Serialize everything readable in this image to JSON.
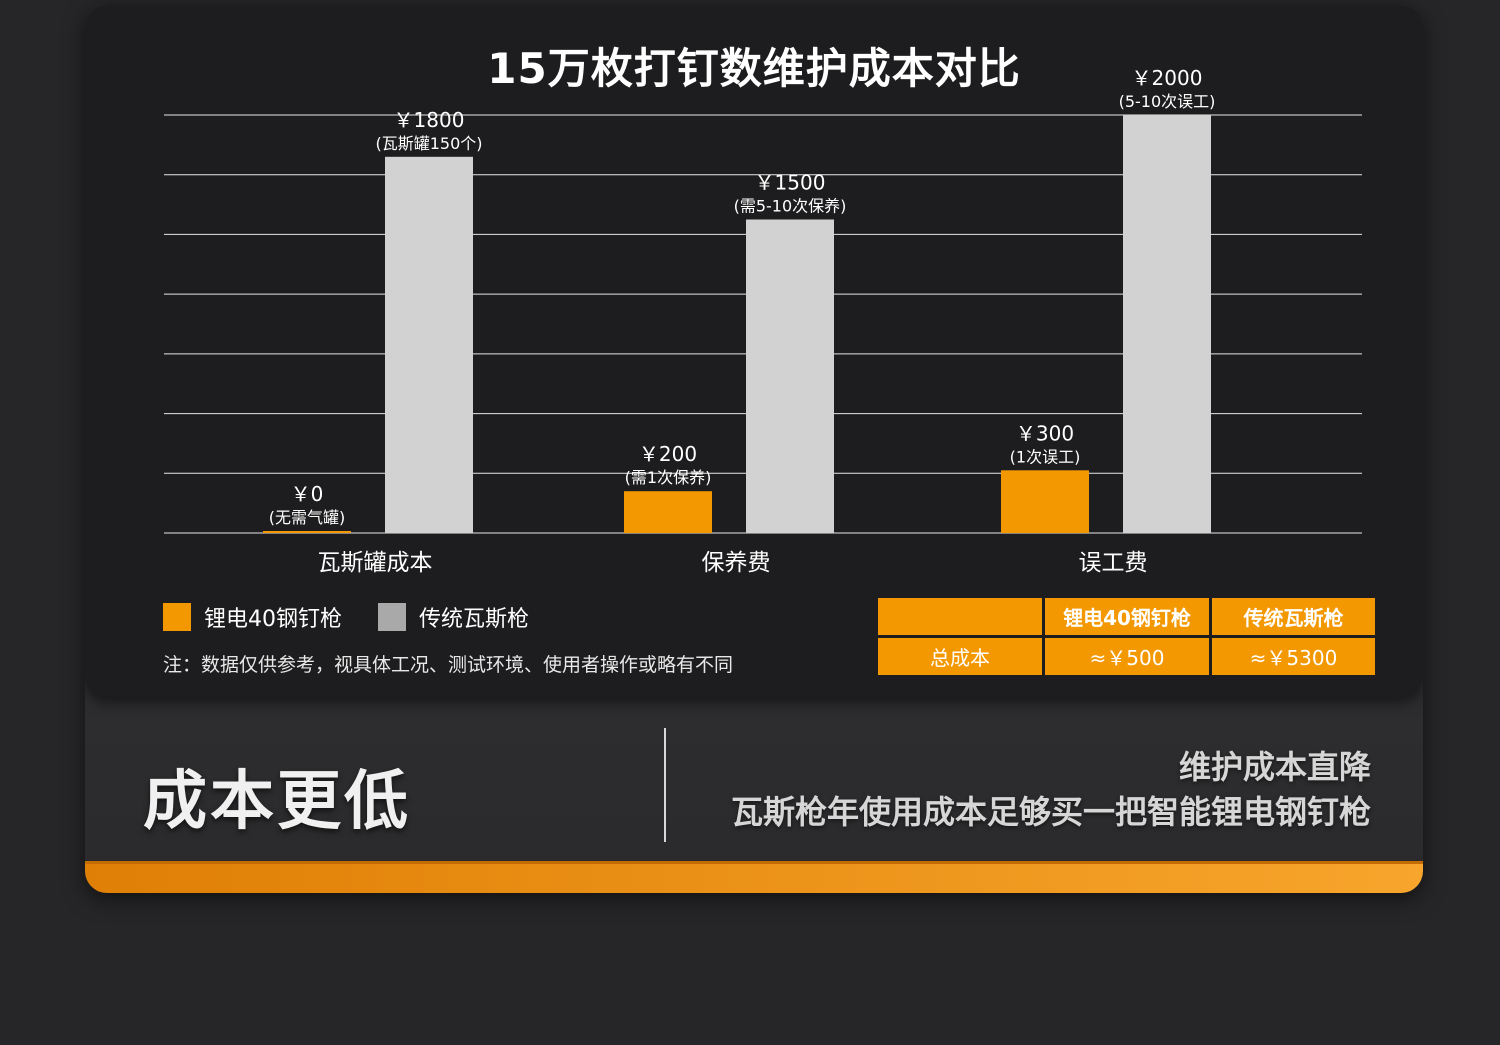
{
  "chart_data": {
    "type": "bar",
    "title": "15万枚打钉数维护成本对比",
    "categories": [
      "瓦斯罐成本",
      "保养费",
      "误工费"
    ],
    "ylim": [
      0,
      2000
    ],
    "grid": true,
    "legend_position": "bottom-left",
    "series": [
      {
        "name": "锂电40钢钉枪",
        "color": "#f39800",
        "values": [
          0,
          200,
          300
        ],
        "value_labels": [
          "￥0",
          "￥200",
          "￥300"
        ],
        "notes": [
          "(无需气罐)",
          "(需1次保养)",
          "(1次误工)"
        ]
      },
      {
        "name": "传统瓦斯枪",
        "color": "#d2d2d2",
        "values": [
          1800,
          1500,
          2000
        ],
        "value_labels": [
          "￥1800",
          "￥1500",
          "￥2000"
        ],
        "notes": [
          "(瓦斯罐150个)",
          "(需5-10次保养)",
          "(5-10次误工)"
        ]
      }
    ]
  },
  "note": "注：数据仅供参考，视具体工况、测试环境、使用者操作或略有不同",
  "cost_table": {
    "headers": [
      "",
      "锂电40钢钉枪",
      "传统瓦斯枪"
    ],
    "row_label": "总成本",
    "values": [
      "≈￥500",
      "≈￥5300"
    ]
  },
  "bottom": {
    "title": "成本更低",
    "line1": "维护成本直降",
    "line2": "瓦斯枪年使用成本足够买一把智能锂电钢钉枪"
  }
}
